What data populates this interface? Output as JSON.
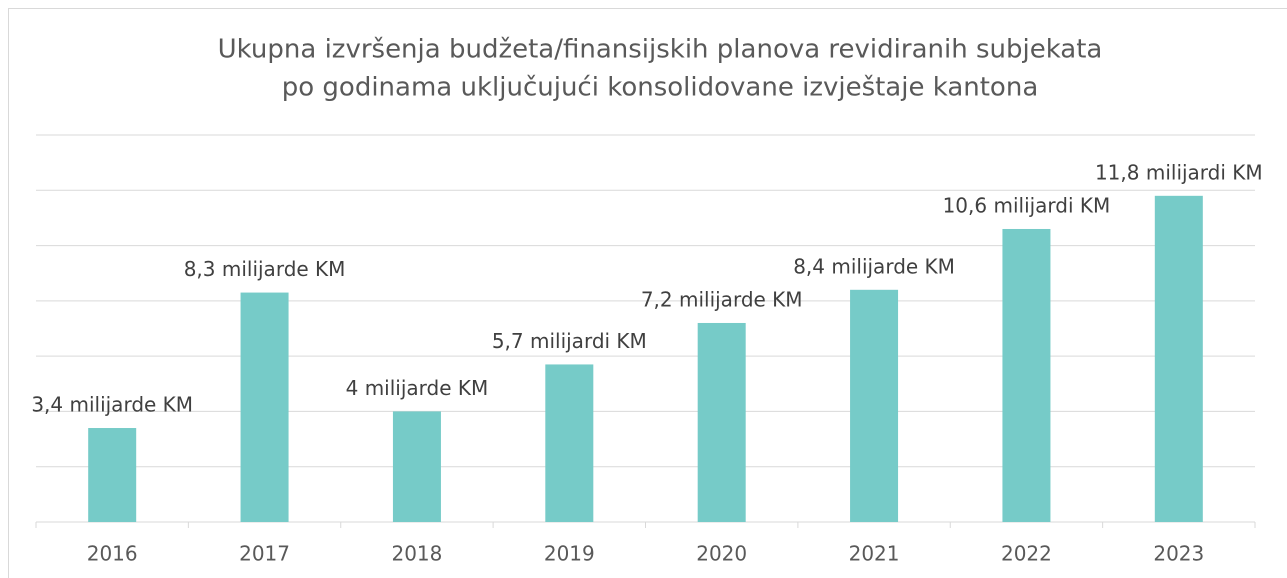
{
  "chart_data": {
    "type": "bar",
    "title": [
      "Ukupna izvršenja budžeta/finansijskih planova revidiranih subjekata",
      "po godinama uključujući konsolidovane izvještaje kantona"
    ],
    "categories": [
      "2016",
      "2017",
      "2018",
      "2019",
      "2020",
      "2021",
      "2022",
      "2023"
    ],
    "values": [
      3.4,
      8.3,
      4,
      5.7,
      7.2,
      8.4,
      10.6,
      11.8
    ],
    "value_labels": [
      "3,4 milijarde KM",
      "8,3 milijarde KM",
      "4 milijarde KM",
      "5,7 milijardi KM",
      "7,2 milijarde KM",
      "8,4 milijarde KM",
      "10,6 milijardi KM",
      "11,8 milijardi KM"
    ],
    "color": "#76cbc8",
    "ylim": [
      0,
      14
    ],
    "yticks": [
      0,
      2,
      4,
      6,
      8,
      10,
      12,
      14
    ],
    "grid": true
  }
}
